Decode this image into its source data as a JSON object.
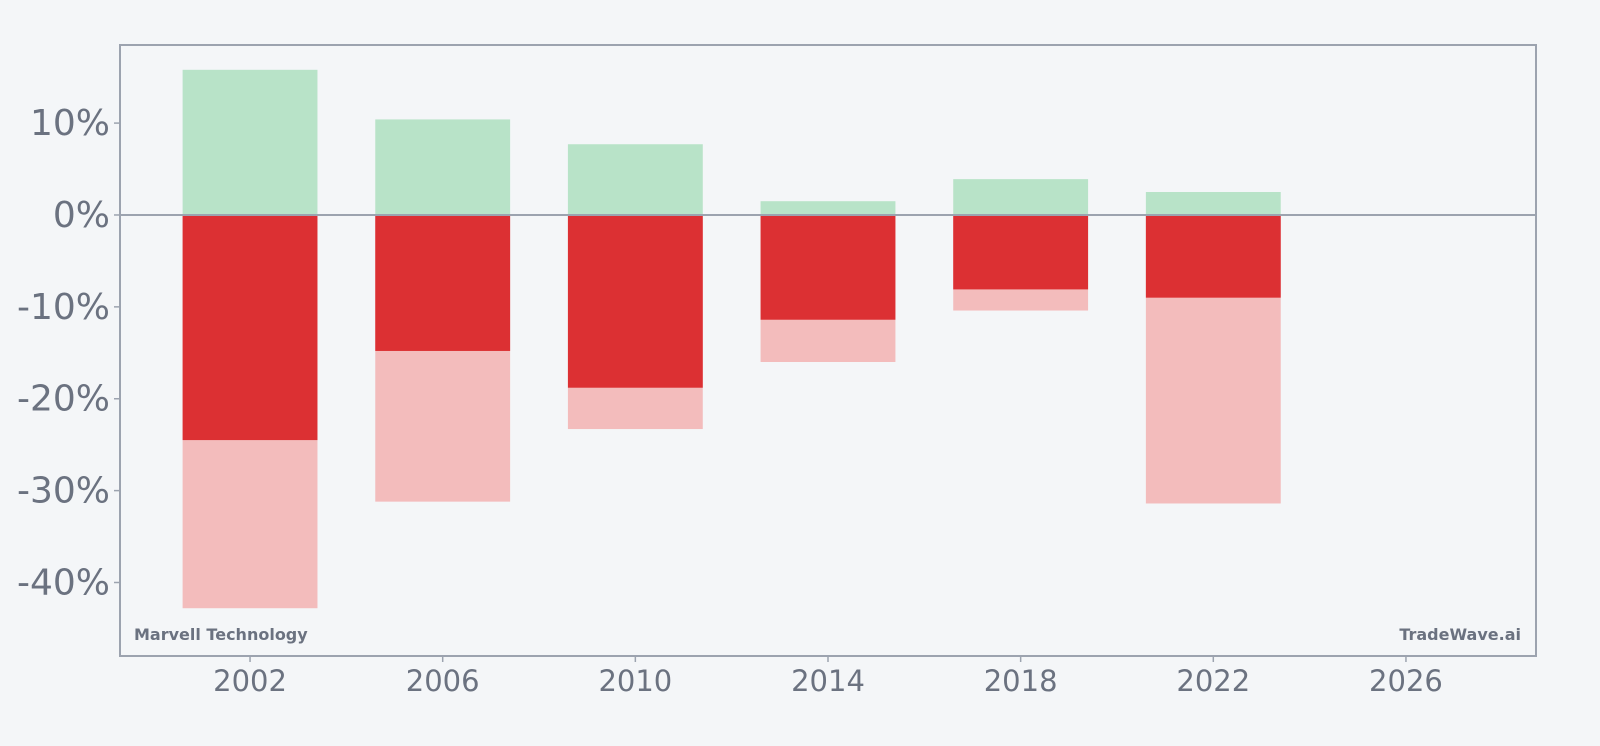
{
  "chart_data": {
    "type": "bar",
    "categories": [
      "2002",
      "2006",
      "2010",
      "2014",
      "2018",
      "2022"
    ],
    "series": [
      {
        "values": [
          15.8,
          10.4,
          7.7,
          1.5,
          3.9,
          2.5
        ],
        "color": "#b8e3c8"
      },
      {
        "values": [
          -24.5,
          -14.8,
          -18.8,
          -11.4,
          -8.1,
          -9.0
        ],
        "color": "#dc3033"
      },
      {
        "values": [
          -42.8,
          -31.2,
          -23.3,
          -16.0,
          -10.4,
          -31.4
        ],
        "color": "#f3bcbc"
      }
    ],
    "ylim": [
      -48,
      18.5
    ],
    "xlim": [
      1999.3,
      2028.7
    ],
    "yticks": [
      10,
      0,
      -10,
      -20,
      -30,
      -40
    ],
    "ytick_labels": [
      "10%",
      "0%",
      "-10%",
      "-20%",
      "-30%",
      "-40%"
    ],
    "xticks": [
      2002,
      2006,
      2010,
      2014,
      2018,
      2022,
      2026
    ],
    "xtick_labels": [
      "2002",
      "2006",
      "2010",
      "2014",
      "2018",
      "2022",
      "2026"
    ],
    "bar_width_years": 2.8,
    "zero_line_color": "#9ca3af",
    "axis_color": "#9ca3af",
    "text_color": "#6b7280",
    "grid": false
  },
  "credits": {
    "left": "Marvell Technology",
    "right": "TradeWave.ai"
  }
}
